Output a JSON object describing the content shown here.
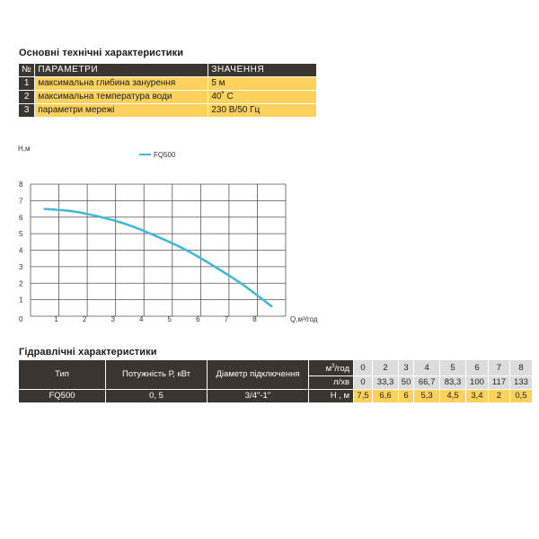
{
  "specs": {
    "title": "Основні технічні характеристики",
    "headers": [
      "№",
      "ПАРАМЕТРИ",
      "ЗНАЧЕННЯ"
    ],
    "rows": [
      {
        "n": "1",
        "param": "максимальна глибина занурення",
        "value": "5 м"
      },
      {
        "n": "2",
        "param": "максимальна температура води",
        "value": "40˚ С"
      },
      {
        "n": "3",
        "param": "параметри мережі",
        "value": "230 В/50 Гц"
      }
    ]
  },
  "chart_data": {
    "type": "line",
    "ylabel": "H,м",
    "xlabel": "Q,м³/год",
    "origin_label": "0",
    "x_ticks": [
      "1",
      "2",
      "3",
      "4",
      "5",
      "6",
      "7",
      "8"
    ],
    "y_ticks": [
      "1",
      "2",
      "3",
      "4",
      "5",
      "6",
      "7",
      "8"
    ],
    "xlim": [
      0,
      9
    ],
    "ylim": [
      0,
      8
    ],
    "grid": true,
    "legend_position": "top-center",
    "series": [
      {
        "name": "FQ500",
        "color": "#3fb8d8",
        "x": [
          0.5,
          1.5,
          2.5,
          3.5,
          4.5,
          5.5,
          6.5,
          7.5,
          8.5
        ],
        "y": [
          6.5,
          6.35,
          6.0,
          5.5,
          4.8,
          4.0,
          3.0,
          1.9,
          0.6
        ]
      }
    ]
  },
  "hydraulics": {
    "title": "Гідравлічні характеристики",
    "col_type": "Тип",
    "col_power": "Потужність Р, кВт",
    "col_diameter": "Діаметр підключення",
    "unit_m3h": "м³/год",
    "unit_lmin": "л/хв",
    "unit_h": "Н , м",
    "m3h": [
      "0",
      "2",
      "3",
      "4",
      "5",
      "6",
      "7",
      "8"
    ],
    "lmin": [
      "0",
      "33,3",
      "50",
      "66,7",
      "83,3",
      "100",
      "117",
      "133"
    ],
    "model": "FQ500",
    "power": "0, 5",
    "diameter": "3/4\"-1\"",
    "h": [
      "7,5",
      "6,6",
      "6",
      "5,3",
      "4,5",
      "3,4",
      "2",
      "0,5"
    ]
  }
}
